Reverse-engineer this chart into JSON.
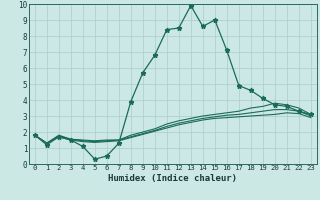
{
  "xlabel": "Humidex (Indice chaleur)",
  "xlim": [
    -0.5,
    23.5
  ],
  "ylim": [
    0,
    10
  ],
  "xticks": [
    0,
    1,
    2,
    3,
    4,
    5,
    6,
    7,
    8,
    9,
    10,
    11,
    12,
    13,
    14,
    15,
    16,
    17,
    18,
    19,
    20,
    21,
    22,
    23
  ],
  "yticks": [
    0,
    1,
    2,
    3,
    4,
    5,
    6,
    7,
    8,
    9,
    10
  ],
  "bg_color": "#cce8e4",
  "grid_color": "#aacccc",
  "line_color": "#1a6b5a",
  "main_line": {
    "x": [
      0,
      1,
      2,
      3,
      4,
      5,
      6,
      7,
      8,
      9,
      10,
      11,
      12,
      13,
      14,
      15,
      16,
      17,
      18,
      19,
      20,
      21,
      22,
      23
    ],
    "y": [
      1.8,
      1.2,
      1.7,
      1.5,
      1.1,
      0.3,
      0.5,
      1.3,
      3.9,
      5.7,
      6.8,
      8.4,
      8.5,
      9.9,
      8.6,
      9.0,
      7.1,
      4.9,
      4.6,
      4.1,
      3.7,
      3.6,
      3.3,
      3.1
    ]
  },
  "other_lines": [
    {
      "x": [
        0,
        1,
        2,
        3,
        4,
        5,
        6,
        7,
        8,
        9,
        10,
        11,
        12,
        13,
        14,
        15,
        16,
        17,
        18,
        19,
        20,
        21,
        22,
        23
      ],
      "y": [
        1.8,
        1.3,
        1.8,
        1.55,
        1.5,
        1.45,
        1.5,
        1.5,
        1.8,
        2.0,
        2.2,
        2.5,
        2.7,
        2.85,
        3.0,
        3.1,
        3.2,
        3.3,
        3.5,
        3.6,
        3.8,
        3.7,
        3.5,
        3.1
      ]
    },
    {
      "x": [
        0,
        1,
        2,
        3,
        4,
        5,
        6,
        7,
        8,
        9,
        10,
        11,
        12,
        13,
        14,
        15,
        16,
        17,
        18,
        19,
        20,
        21,
        22,
        23
      ],
      "y": [
        1.8,
        1.3,
        1.75,
        1.55,
        1.45,
        1.4,
        1.45,
        1.5,
        1.7,
        1.9,
        2.1,
        2.35,
        2.55,
        2.7,
        2.85,
        2.95,
        3.05,
        3.1,
        3.2,
        3.3,
        3.4,
        3.4,
        3.3,
        3.0
      ]
    },
    {
      "x": [
        0,
        1,
        2,
        3,
        4,
        5,
        6,
        7,
        8,
        9,
        10,
        11,
        12,
        13,
        14,
        15,
        16,
        17,
        18,
        19,
        20,
        21,
        22,
        23
      ],
      "y": [
        1.8,
        1.3,
        1.7,
        1.5,
        1.4,
        1.35,
        1.4,
        1.45,
        1.65,
        1.85,
        2.05,
        2.25,
        2.45,
        2.6,
        2.75,
        2.85,
        2.9,
        2.95,
        3.0,
        3.05,
        3.1,
        3.2,
        3.15,
        2.9
      ]
    }
  ]
}
